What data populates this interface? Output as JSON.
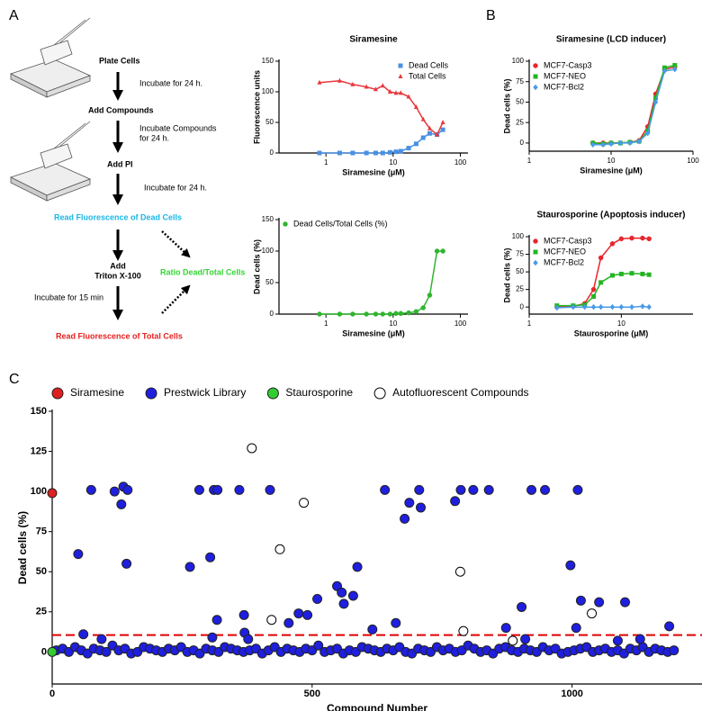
{
  "panel_labels": [
    "A",
    "B",
    "C"
  ],
  "diagram": {
    "plate_cells": "Plate Cells",
    "incubate_1": "Incubate for 24 h.",
    "add_compounds": "Add Compounds",
    "incubate_2": [
      "Incubate Compounds",
      "for 24 h."
    ],
    "add_pi": "Add PI",
    "incubate_3": "Incubate for 24 h.",
    "read_dead": "Read Fluorescence of Dead Cells",
    "add_triton": [
      "Add",
      "Triton X-100"
    ],
    "ratio": "Ratio Dead/Total Cells",
    "incubate_4": "Incubate for 15 min",
    "read_total": "Read Fluorescence of Total Cells"
  },
  "chart_data": [
    {
      "type": "line",
      "title": "Siramesine",
      "x_label": "Siramesine (μM)",
      "y_label": "Fluorescence units",
      "xscale": "log",
      "xlim": [
        0.2,
        130
      ],
      "xticks": [
        1,
        10,
        100
      ],
      "ylim": [
        0,
        150
      ],
      "yticks": [
        0,
        50,
        100,
        150
      ],
      "legend": "top-right",
      "x": [
        0.8,
        1.6,
        2.5,
        4,
        5.5,
        7,
        9,
        11,
        13,
        17,
        22,
        28,
        35,
        45,
        55
      ],
      "series": [
        {
          "name": "Dead Cells",
          "color": "#4a90e2",
          "marker": "square",
          "values": [
            0,
            0,
            0,
            0,
            0,
            0,
            1,
            2,
            3,
            8,
            15,
            25,
            32,
            30,
            38
          ]
        },
        {
          "name": "Total Cells",
          "color": "#e8383d",
          "marker": "triangle",
          "values": [
            115,
            118,
            112,
            108,
            104,
            110,
            100,
            98,
            98,
            92,
            75,
            55,
            40,
            30,
            50
          ]
        }
      ]
    },
    {
      "type": "line",
      "x_label": "Siramesine (μM)",
      "y_label": "Dead cells (%)",
      "xscale": "log",
      "xlim": [
        0.2,
        130
      ],
      "xticks": [
        1,
        10,
        100
      ],
      "ylim": [
        0,
        150
      ],
      "yticks": [
        0,
        50,
        100,
        150
      ],
      "legend": "top-left",
      "x": [
        0.8,
        1.6,
        2.5,
        4,
        5.5,
        7,
        9,
        11,
        13,
        17,
        22,
        28,
        35,
        45,
        55
      ],
      "series": [
        {
          "name": "Dead Cells/Total Cells (%)",
          "color": "#2fb52f",
          "marker": "circle",
          "values": [
            0,
            0,
            0,
            0,
            0,
            0,
            0,
            1,
            1,
            2,
            4,
            10,
            30,
            100,
            100
          ]
        }
      ]
    },
    {
      "type": "line",
      "title": "Siramesine (LCD inducer)",
      "x_label": "Siramesine (μM)",
      "y_label": "Dead cells (%)",
      "xscale": "log",
      "xlim": [
        1,
        100
      ],
      "xticks": [
        1,
        10,
        100
      ],
      "ylim": [
        -10,
        100
      ],
      "yticks": [
        0,
        25,
        50,
        75,
        100
      ],
      "legend": "top-left",
      "x": [
        6,
        8,
        10,
        13,
        17,
        22,
        28,
        35,
        45,
        60
      ],
      "series": [
        {
          "name": "MCF7-Casp3",
          "color": "#e8262d",
          "marker": "circle",
          "values": [
            0,
            0,
            0,
            0,
            1,
            3,
            20,
            60,
            90,
            93
          ]
        },
        {
          "name": "MCF7-NEO",
          "color": "#22b522",
          "marker": "square",
          "values": [
            0,
            -1,
            0,
            0,
            1,
            2,
            15,
            55,
            92,
            95
          ]
        },
        {
          "name": "MCF7-Bcl2",
          "color": "#4a9be8",
          "marker": "diamond",
          "values": [
            -2,
            -2,
            -1,
            0,
            0,
            2,
            12,
            50,
            88,
            90
          ]
        }
      ]
    },
    {
      "type": "line",
      "title": "Staurosporine (Apoptosis inducer)",
      "x_label": "Staurosporine (μM)",
      "y_label": "Dead cells (%)",
      "xscale": "log",
      "xlim": [
        1,
        60
      ],
      "xticks": [
        1,
        10
      ],
      "ylim": [
        -10,
        100
      ],
      "yticks": [
        0,
        25,
        50,
        75,
        100
      ],
      "legend": "top-left",
      "x": [
        2,
        3,
        4,
        5,
        6,
        8,
        10,
        13,
        17,
        20
      ],
      "series": [
        {
          "name": "MCF7-Casp3",
          "color": "#e8262d",
          "marker": "circle",
          "values": [
            0,
            1,
            5,
            25,
            70,
            90,
            97,
            98,
            98,
            97
          ]
        },
        {
          "name": "MCF7-NEO",
          "color": "#22b522",
          "marker": "square",
          "values": [
            2,
            2,
            3,
            15,
            35,
            45,
            47,
            48,
            47,
            46
          ]
        },
        {
          "name": "MCF7-Bcl2",
          "color": "#4a9be8",
          "marker": "diamond",
          "values": [
            -1,
            0,
            0,
            0,
            0,
            0,
            0,
            0,
            1,
            0
          ]
        }
      ]
    },
    {
      "type": "scatter",
      "x_label": "Compound Number",
      "y_label": "Dead cells (%)",
      "xlim": [
        0,
        1250
      ],
      "xticks": [
        0,
        500,
        1000
      ],
      "ylim": [
        -20,
        150
      ],
      "yticks": [
        0,
        25,
        50,
        75,
        100,
        125,
        150
      ],
      "legend": "top",
      "threshold": 10.5,
      "threshold_color": "#e00000",
      "series": [
        {
          "name": "Siramesine",
          "color": "#e02020",
          "marker": "circle",
          "x": [
            0
          ],
          "values": [
            99
          ]
        },
        {
          "name": "Prestwick Library",
          "color": "#1f1fe0",
          "marker": "circle",
          "x": [
            8,
            20,
            32,
            44,
            56,
            68,
            80,
            92,
            104,
            116,
            128,
            140,
            152,
            164,
            176,
            188,
            200,
            212,
            224,
            236,
            248,
            260,
            272,
            284,
            296,
            308,
            320,
            332,
            344,
            356,
            368,
            380,
            392,
            404,
            416,
            428,
            440,
            452,
            464,
            476,
            488,
            500,
            512,
            524,
            536,
            548,
            560,
            572,
            584,
            596,
            608,
            620,
            632,
            644,
            656,
            668,
            680,
            692,
            704,
            716,
            728,
            740,
            752,
            764,
            776,
            788,
            800,
            812,
            824,
            836,
            848,
            860,
            872,
            884,
            896,
            908,
            920,
            932,
            944,
            956,
            968,
            980,
            992,
            1004,
            1016,
            1028,
            1040,
            1052,
            1064,
            1076,
            1088,
            1100,
            1112,
            1124,
            1136,
            1148,
            1160,
            1172,
            1184,
            1196,
            50,
            60,
            75,
            95,
            120,
            137,
            133,
            145,
            143,
            265,
            283,
            304,
            311,
            318,
            317,
            308,
            360,
            369,
            370,
            377,
            419,
            455,
            474,
            491,
            510,
            548,
            557,
            561,
            579,
            587,
            616,
            640,
            661,
            678,
            687,
            706,
            709,
            775,
            786,
            810,
            840,
            873,
            903,
            910,
            922,
            948,
            997,
            1011,
            1008,
            1017,
            1052,
            1088,
            1102,
            1131,
            1187
          ],
          "values": [
            1,
            2,
            0,
            3,
            1,
            -1,
            2,
            1,
            0,
            4,
            1,
            2,
            -1,
            0,
            3,
            2,
            1,
            0,
            2,
            1,
            3,
            0,
            1,
            -1,
            2,
            1,
            0,
            3,
            2,
            1,
            0,
            1,
            2,
            -1,
            1,
            3,
            0,
            2,
            1,
            0,
            2,
            1,
            4,
            0,
            1,
            2,
            -1,
            1,
            0,
            3,
            2,
            1,
            0,
            2,
            1,
            3,
            0,
            -1,
            2,
            1,
            0,
            3,
            1,
            2,
            0,
            1,
            4,
            2,
            0,
            1,
            -1,
            2,
            3,
            1,
            0,
            2,
            1,
            0,
            3,
            1,
            2,
            -1,
            0,
            1,
            2,
            3,
            0,
            1,
            2,
            0,
            1,
            -1,
            2,
            1,
            3,
            0,
            2,
            1,
            0,
            1,
            61,
            11,
            101,
            8,
            100,
            103,
            92,
            101,
            55,
            53,
            101,
            59,
            101,
            101,
            20,
            9,
            101,
            23,
            12,
            8,
            101,
            18,
            24,
            23,
            33,
            41,
            37,
            30,
            35,
            53,
            14,
            101,
            18,
            83,
            93,
            101,
            90,
            94,
            101,
            101,
            101,
            15,
            28,
            8,
            101,
            101,
            54,
            101,
            15,
            32,
            31,
            7,
            31,
            8,
            16
          ]
        },
        {
          "name": "Staurosporine",
          "color": "#33cc33",
          "marker": "circle",
          "x": [
            0
          ],
          "values": [
            0
          ]
        },
        {
          "name": "Autofluorescent Compounds",
          "color": "#ffffff",
          "marker": "circle",
          "x": [
            384,
            484,
            438,
            422,
            785,
            791,
            886,
            1038
          ],
          "values": [
            127,
            93,
            64,
            20,
            50,
            13,
            7,
            24
          ]
        }
      ]
    }
  ]
}
